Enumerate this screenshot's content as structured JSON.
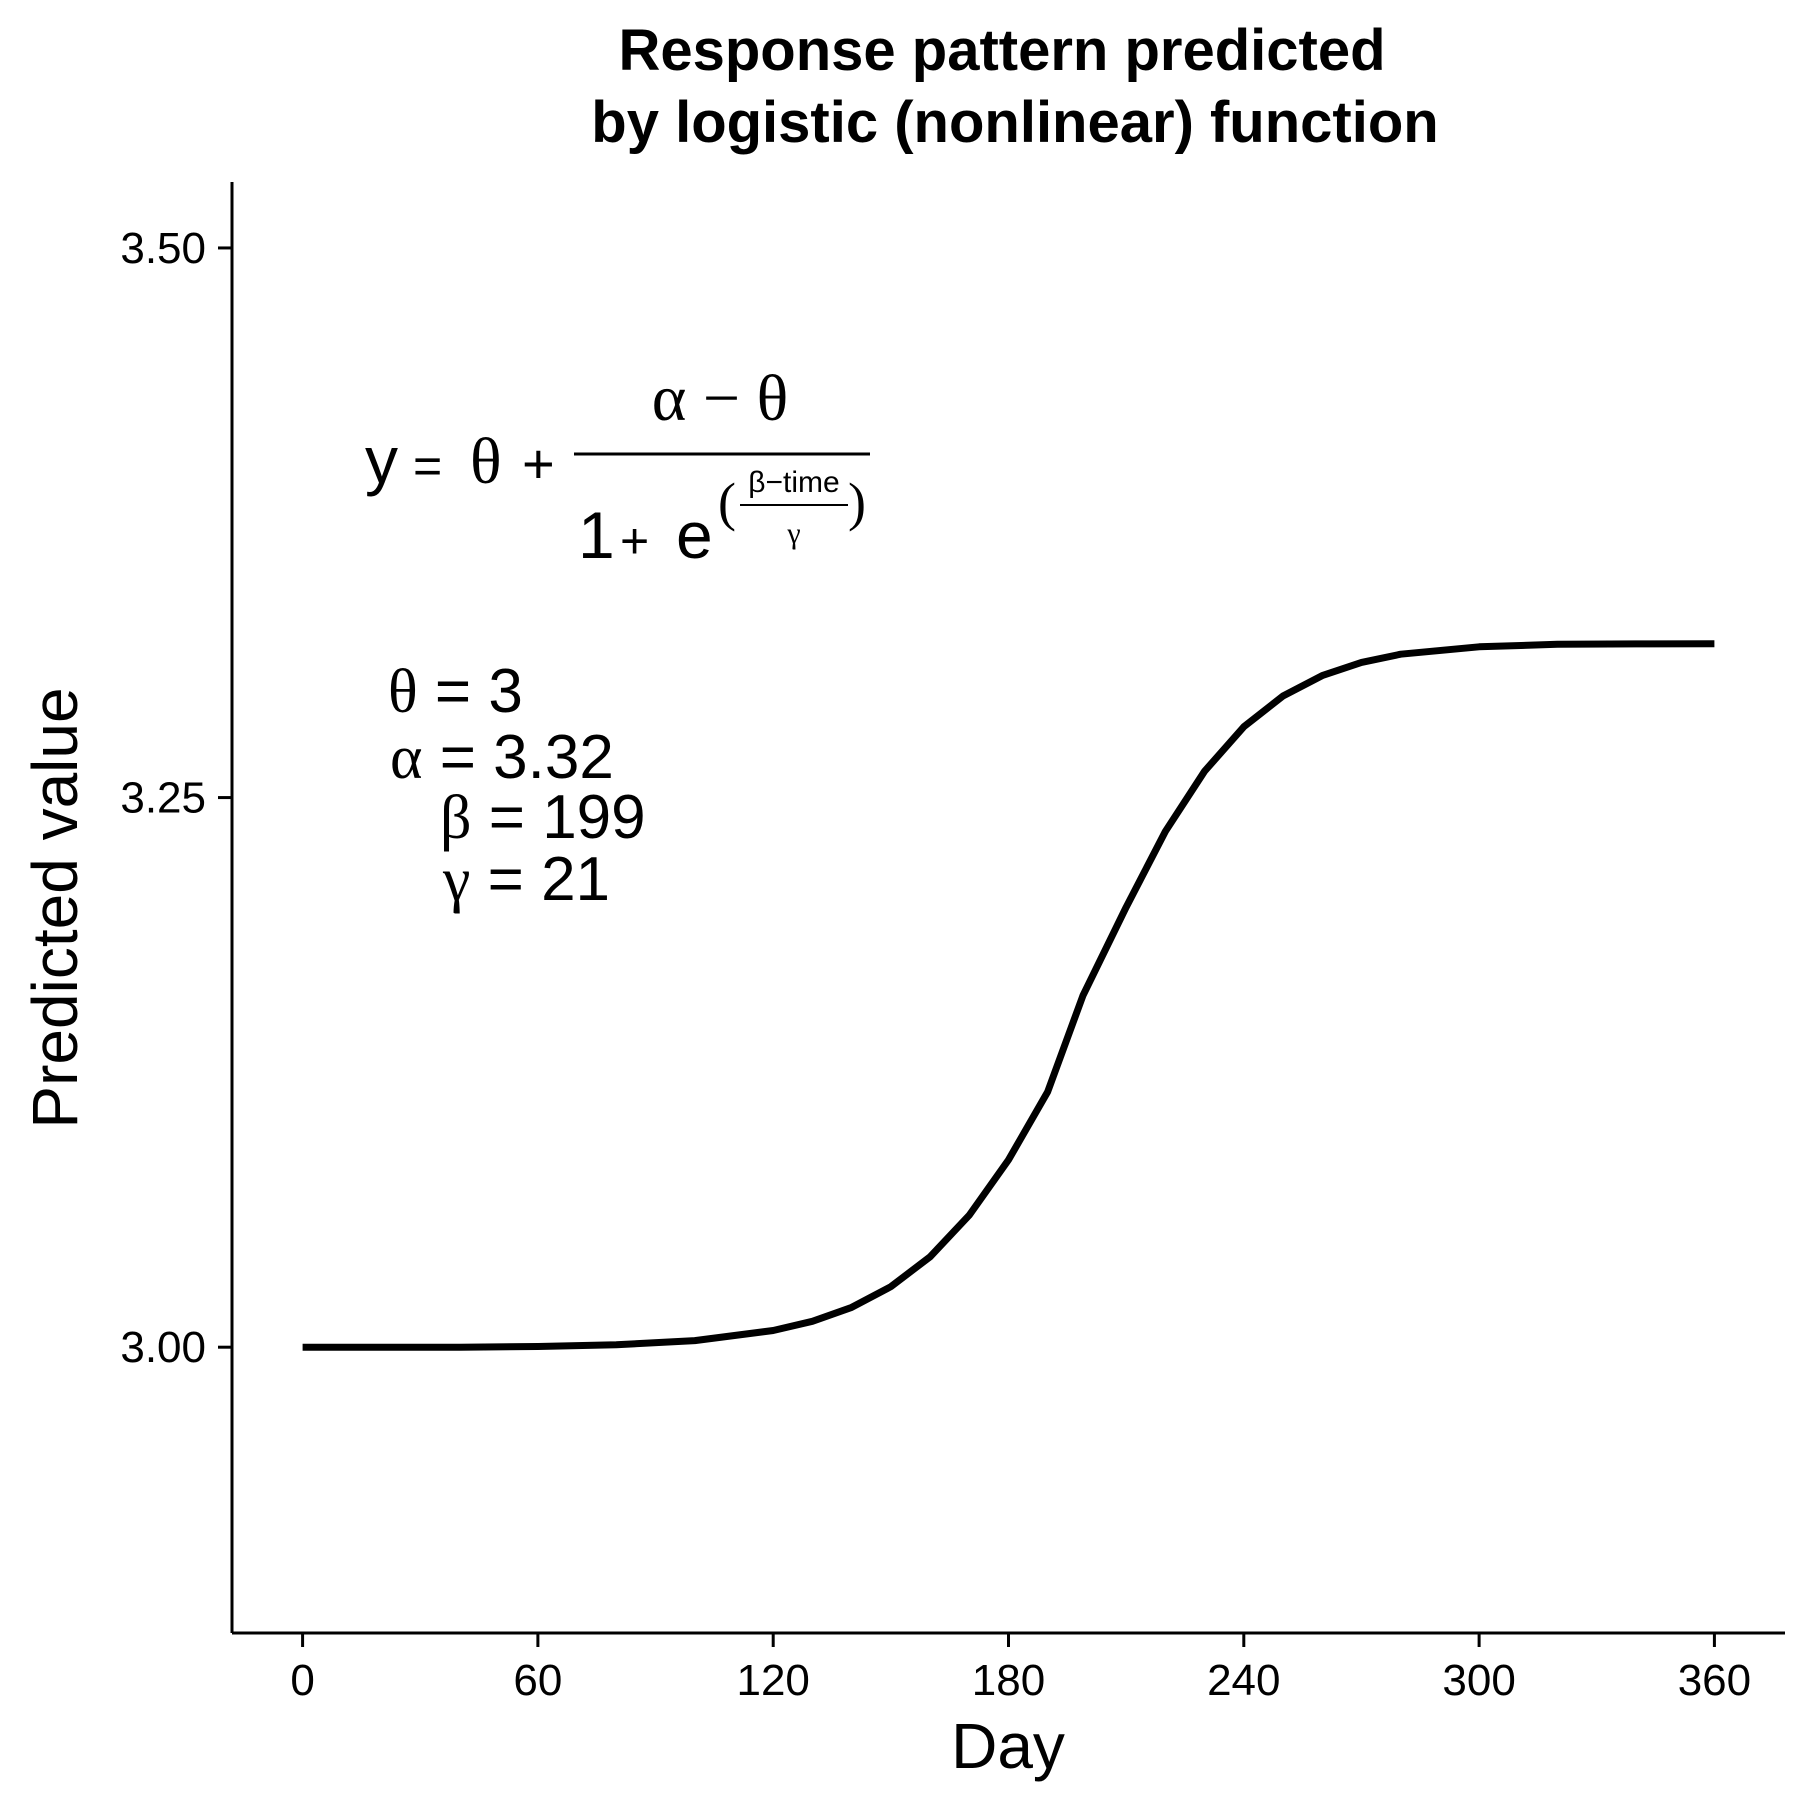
{
  "chart_data": {
    "type": "line",
    "title_lines": [
      "Response pattern predicted",
      "by logistic (nonlinear) function"
    ],
    "xlabel": "Day",
    "ylabel": "Predicted value",
    "xlim": [
      -18,
      378
    ],
    "ylim": [
      2.87,
      3.53
    ],
    "xticks": [
      0,
      60,
      120,
      180,
      240,
      300,
      360
    ],
    "xtick_labels": [
      "0",
      "60",
      "120",
      "180",
      "240",
      "300",
      "360"
    ],
    "yticks": [
      3.0,
      3.25,
      3.5
    ],
    "ytick_labels": [
      "3.00",
      "3.25",
      "3.50"
    ],
    "grid": false,
    "line_color": "#000000",
    "series": [
      {
        "x": [
          0,
          20,
          40,
          60,
          80,
          100,
          120,
          130,
          140,
          150,
          160,
          170,
          180,
          190,
          199,
          210,
          220,
          230,
          240,
          250,
          260,
          270,
          280,
          300,
          320,
          340,
          360
        ],
        "y": [
          3.0,
          3.0,
          3.0,
          3.0003,
          3.0011,
          3.003,
          3.0076,
          3.0118,
          3.0181,
          3.0275,
          3.0411,
          3.0601,
          3.0852,
          3.1162,
          3.16,
          3.2002,
          3.2346,
          3.262,
          3.2822,
          3.2962,
          3.3055,
          3.3115,
          3.3152,
          3.3186,
          3.3197,
          3.3199,
          3.32
        ]
      }
    ]
  },
  "equation": {
    "lhs": "y",
    "equals": "=",
    "theta": "θ",
    "plus": "+",
    "numerator": "α − θ",
    "one": "1",
    "e": "e",
    "exp_numerator": "β−time",
    "exp_denominator": "γ",
    "paren_open": "(",
    "paren_close": ")"
  },
  "parameters": [
    {
      "symbol": "θ",
      "text": " = 3"
    },
    {
      "symbol": "α",
      "text": " = 3.32"
    },
    {
      "symbol": "β",
      "text": " = 199"
    },
    {
      "symbol": "γ",
      "text": " = 21"
    }
  ]
}
